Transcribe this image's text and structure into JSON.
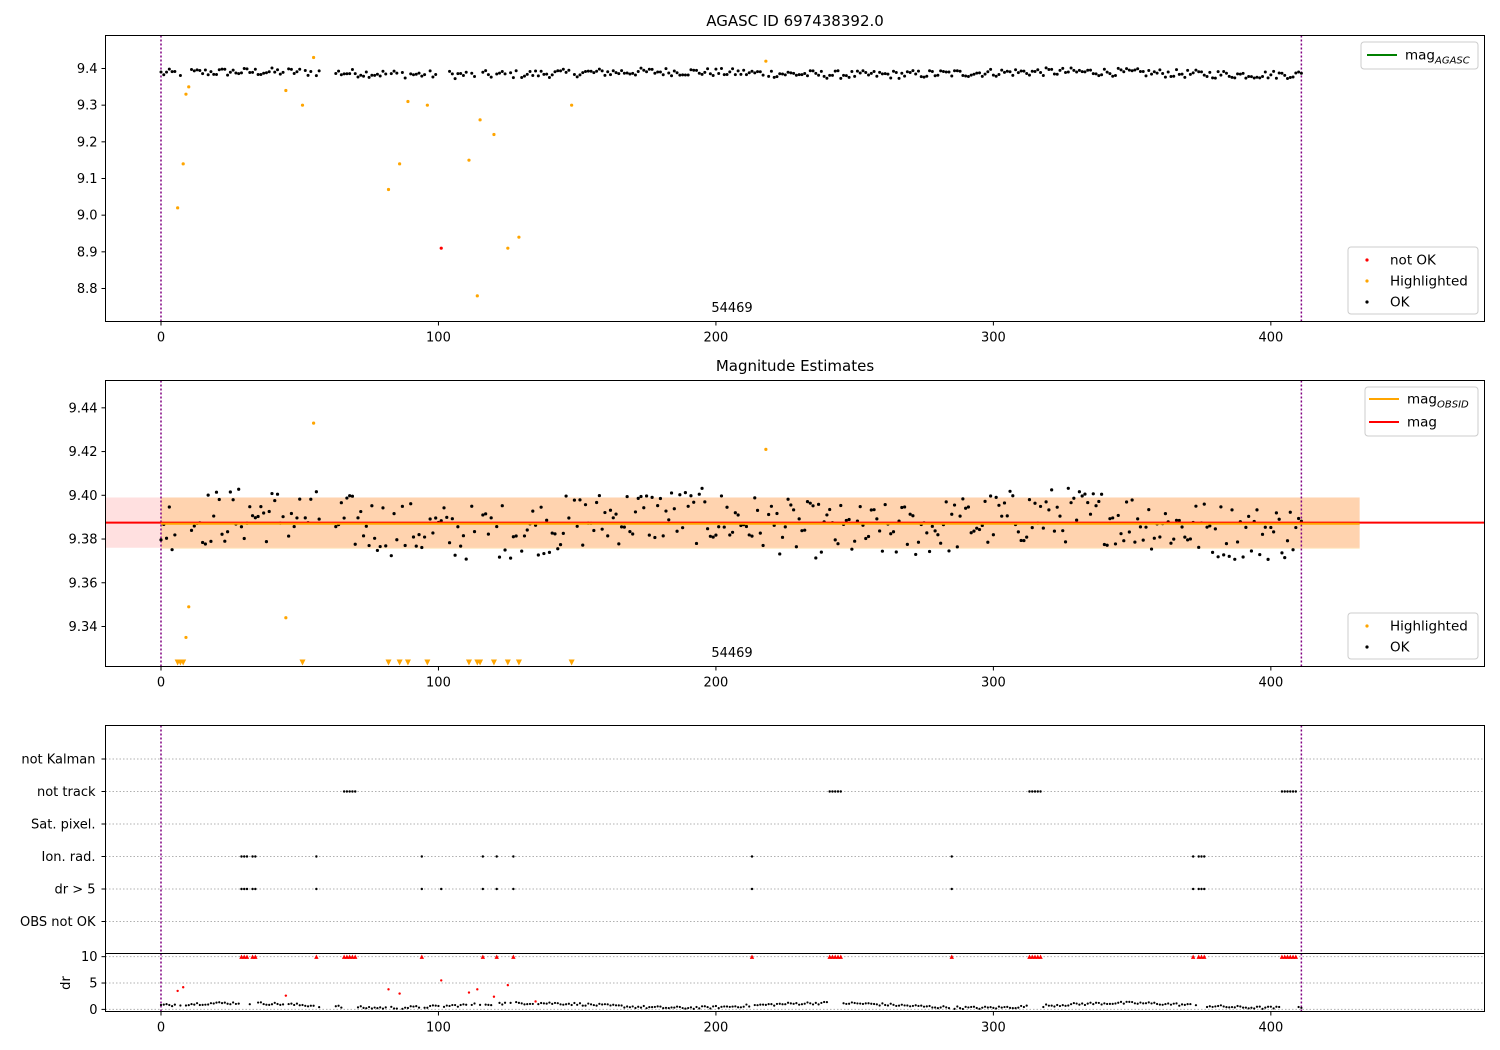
{
  "chart_data": [
    {
      "type": "scatter",
      "title": "AGASC ID 697438392.0",
      "annotation": "54469",
      "xlim": [
        -20,
        477
      ],
      "ylim": [
        8.71,
        9.49
      ],
      "xticks": [
        0,
        100,
        200,
        300,
        400
      ],
      "yticks": [
        8.8,
        8.9,
        9.0,
        9.1,
        9.2,
        9.3,
        9.4
      ],
      "vlines": [
        0,
        411
      ],
      "legend_top": [
        {
          "label": "mag",
          "sub": "AGASC",
          "color": "#008000"
        }
      ],
      "legend_bottom": [
        {
          "label": "not OK",
          "color": "#ff0000"
        },
        {
          "label": "Highlighted",
          "color": "#ffa500"
        },
        {
          "label": "OK",
          "color": "#000000"
        }
      ],
      "series": [
        {
          "name": "Highlighted",
          "color": "#ffa500",
          "points": [
            [
              6,
              9.02
            ],
            [
              8,
              9.14
            ],
            [
              9,
              9.33
            ],
            [
              10,
              9.35
            ],
            [
              45,
              9.34
            ],
            [
              51,
              9.3
            ],
            [
              55,
              9.43
            ],
            [
              82,
              9.07
            ],
            [
              86,
              9.14
            ],
            [
              89,
              9.31
            ],
            [
              96,
              9.3
            ],
            [
              111,
              9.15
            ],
            [
              114,
              8.78
            ],
            [
              115,
              9.26
            ],
            [
              120,
              9.22
            ],
            [
              125,
              8.91
            ],
            [
              129,
              8.94
            ],
            [
              148,
              9.3
            ],
            [
              218,
              9.42
            ]
          ]
        },
        {
          "name": "not OK",
          "color": "#ff0000",
          "points": [
            [
              101,
              8.91
            ]
          ]
        }
      ],
      "ok_band": {
        "mean": 9.387,
        "spread": 0.011,
        "gaps": [
          [
            58,
            62
          ],
          [
            100,
            103
          ]
        ],
        "x_from": 0,
        "x_to": 411
      }
    },
    {
      "type": "scatter",
      "title": "Magnitude Estimates",
      "annotation": "54469",
      "xlim": [
        -20,
        477
      ],
      "ylim": [
        9.3217,
        9.4525
      ],
      "xticks": [
        0,
        100,
        200,
        300,
        400
      ],
      "yticks": [
        9.34,
        9.36,
        9.38,
        9.4,
        9.42,
        9.44
      ],
      "vlines": [
        0,
        411
      ],
      "mag_line": 9.3875,
      "mag_band": [
        9.376,
        9.399
      ],
      "mag_band_x": [
        -20,
        432
      ],
      "obsid_line": 9.387,
      "obsid_band": [
        9.3755,
        9.399
      ],
      "obsid_band_x": [
        0,
        432
      ],
      "legend_top": [
        {
          "label": "mag",
          "sub": "OBSID",
          "color": "#ffa500"
        },
        {
          "label": "mag",
          "sub": "",
          "color": "#ff0000"
        }
      ],
      "legend_bottom": [
        {
          "label": "Highlighted",
          "color": "#ffa500"
        },
        {
          "label": "OK",
          "color": "#000000"
        }
      ],
      "highlighted": [
        [
          9,
          9.335
        ],
        [
          10,
          9.349
        ],
        [
          45,
          9.344
        ],
        [
          55,
          9.433
        ],
        [
          218,
          9.421
        ]
      ],
      "offscale_markers": [
        6,
        7,
        8,
        51,
        82,
        86,
        89,
        96,
        111,
        114,
        115,
        120,
        125,
        129,
        148
      ]
    },
    {
      "type": "scatter",
      "categories": [
        "not Kalman",
        "not track",
        "Sat. pixel.",
        "Ion. rad.",
        "dr > 5",
        "OBS not OK"
      ],
      "flags": {
        "not track": [
          [
            66,
            70
          ],
          [
            241,
            245
          ],
          [
            313,
            317
          ],
          [
            404,
            409
          ]
        ],
        "Ion. rad.": [
          [
            29,
            31
          ],
          [
            33,
            34
          ],
          [
            56,
            56
          ],
          [
            94,
            94
          ],
          [
            116,
            116
          ],
          [
            121,
            121
          ],
          [
            127,
            127
          ],
          [
            213,
            213
          ],
          [
            285,
            285
          ],
          [
            372,
            372
          ],
          [
            374,
            376
          ]
        ],
        "dr > 5": [
          [
            29,
            31
          ],
          [
            33,
            34
          ],
          [
            56,
            56
          ],
          [
            94,
            94
          ],
          [
            101,
            101
          ],
          [
            116,
            116
          ],
          [
            121,
            121
          ],
          [
            127,
            127
          ],
          [
            213,
            213
          ],
          [
            285,
            285
          ],
          [
            372,
            372
          ],
          [
            374,
            376
          ]
        ]
      },
      "ylabel": "dr",
      "dr_yticks": [
        0,
        5,
        10
      ],
      "dr_ylim": [
        -0.4,
        10.6
      ],
      "dr_clip_markers": [
        29,
        30,
        31,
        33,
        34,
        56,
        66,
        67,
        68,
        69,
        70,
        94,
        116,
        121,
        127,
        213,
        241,
        242,
        243,
        244,
        245,
        285,
        313,
        314,
        315,
        316,
        317,
        372,
        374,
        375,
        376,
        404,
        405,
        406,
        407,
        408,
        409
      ],
      "dr_outliers": [
        [
          6,
          3.5
        ],
        [
          8,
          4.2
        ],
        [
          45,
          2.6
        ],
        [
          82,
          3.8
        ],
        [
          86,
          3.0
        ],
        [
          101,
          5.5
        ],
        [
          111,
          3.2
        ],
        [
          114,
          3.8
        ],
        [
          120,
          2.4
        ],
        [
          125,
          4.6
        ],
        [
          135,
          1.5
        ]
      ]
    }
  ]
}
